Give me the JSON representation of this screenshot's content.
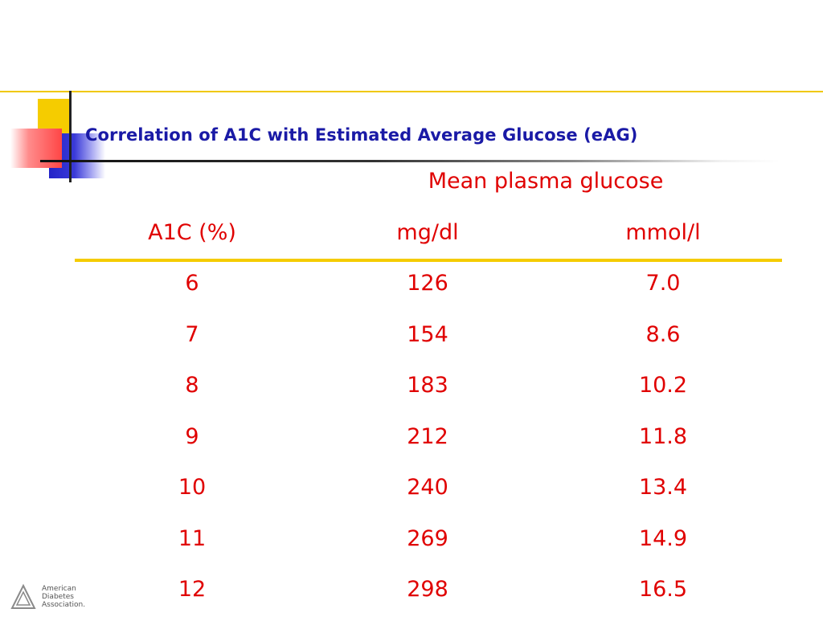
{
  "slide": {
    "title": "Correlation of A1C with Estimated Average Glucose (eAG)"
  },
  "chart_data": {
    "type": "table",
    "group_header": "Mean plasma glucose",
    "columns": [
      "A1C (%)",
      "mg/dl",
      "mmol/l"
    ],
    "rows": [
      [
        "6",
        "126",
        "7.0"
      ],
      [
        "7",
        "154",
        "8.6"
      ],
      [
        "8",
        "183",
        "10.2"
      ],
      [
        "9",
        "212",
        "11.8"
      ],
      [
        "10",
        "240",
        "13.4"
      ],
      [
        "11",
        "269",
        "14.9"
      ],
      [
        "12",
        "298",
        "16.5"
      ]
    ]
  },
  "footer": {
    "logo_lines": [
      "American",
      "Diabetes",
      "Association."
    ]
  },
  "colors": {
    "title": "#1a1aa6",
    "table_text": "#e00000",
    "accent_yellow": "#f5cc00",
    "accent_blue": "#2323c8",
    "accent_red": "#ff4646"
  }
}
